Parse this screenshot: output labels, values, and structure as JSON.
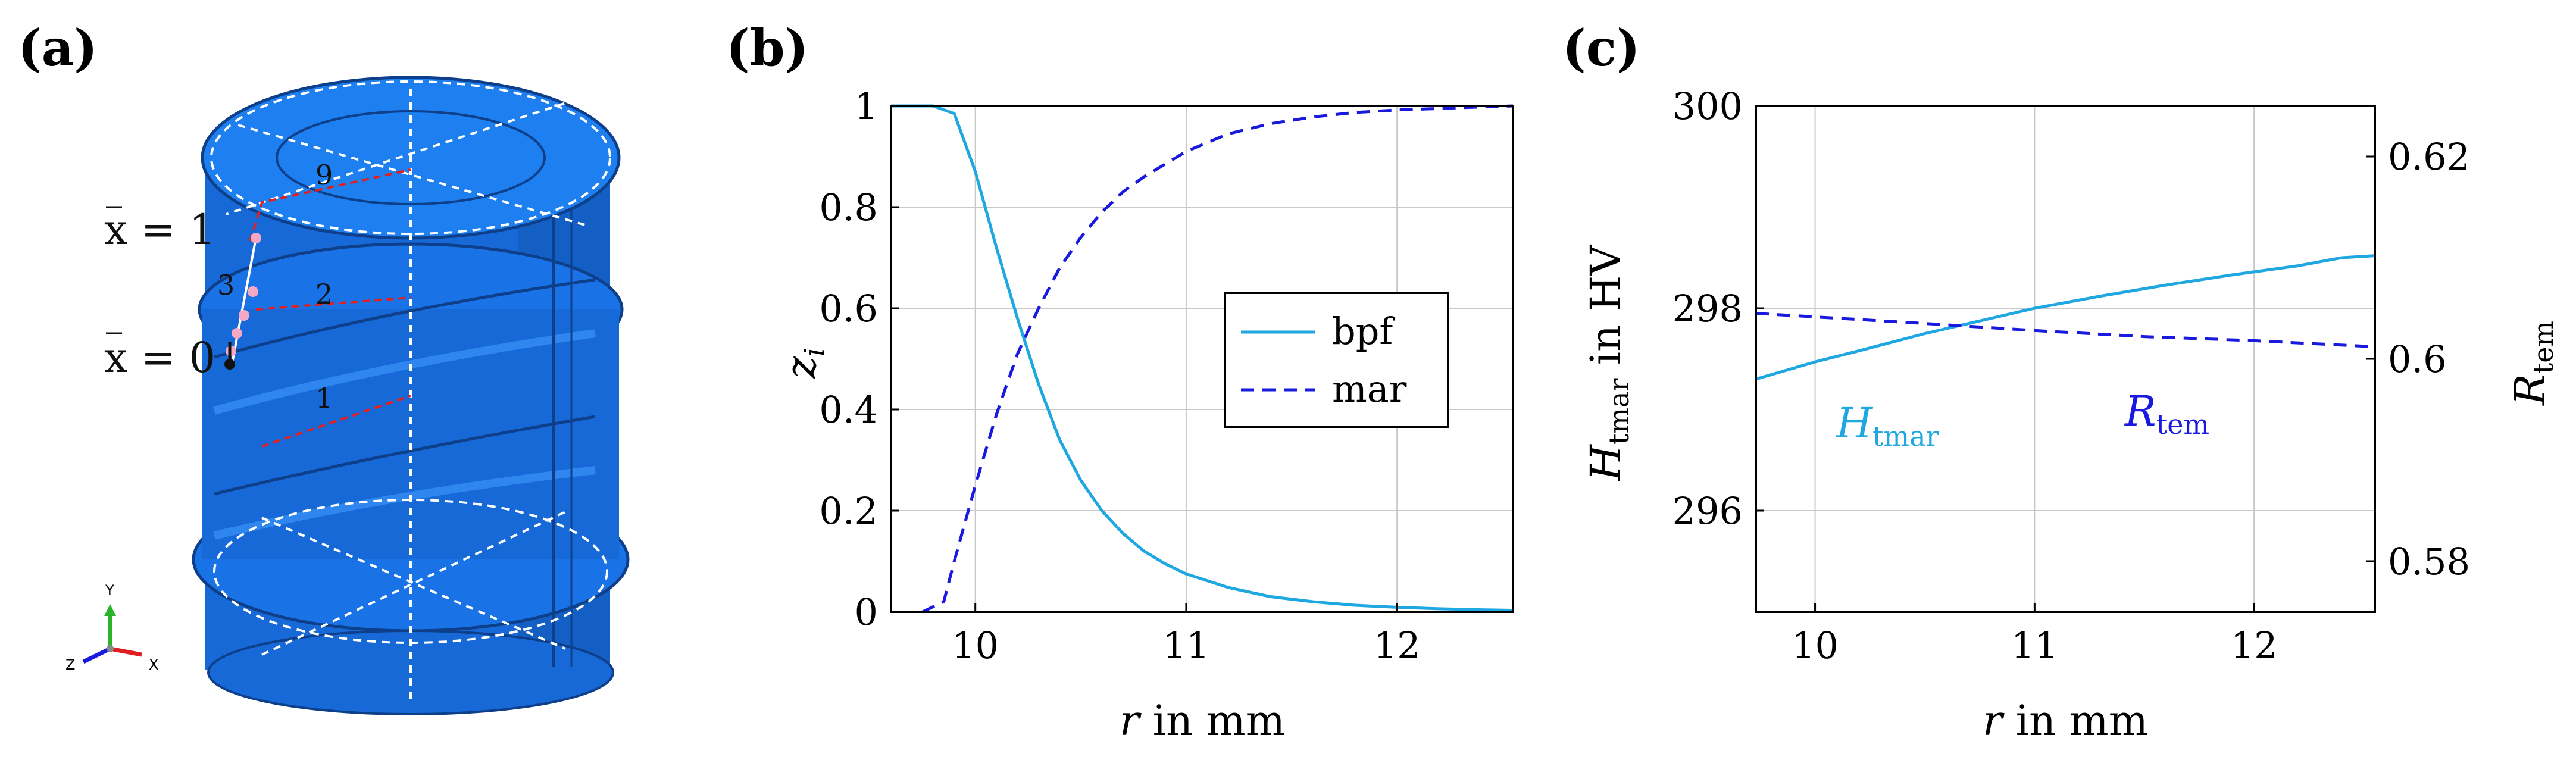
{
  "panels": {
    "a": {
      "label": "(a)",
      "xbar_top": "x = 1",
      "xbar_bottom": "x = 0",
      "point_labels": [
        "9",
        "3",
        "2",
        "1"
      ],
      "triad": {
        "y": "Y",
        "z": "Z",
        "x": "X"
      }
    },
    "b": {
      "label": "(b)"
    },
    "c": {
      "label": "(c)"
    }
  },
  "chart_data": [
    {
      "type": "line",
      "panel": "b",
      "xlabel_var": "r",
      "xlabel_rest": " in mm",
      "ylabel_var": "z",
      "ylabel_sub": "i",
      "xlim": [
        9.6,
        12.55
      ],
      "ylim": [
        0,
        1
      ],
      "xticks": [
        10,
        11,
        12
      ],
      "yticks": [
        0,
        0.2,
        0.4,
        0.6,
        0.8,
        1
      ],
      "ytick_labels": [
        "0",
        "0.2",
        "0.4",
        "0.6",
        "0.8",
        "1"
      ],
      "grid": true,
      "legend_position": "middle-right",
      "series": [
        {
          "name": "bpf",
          "style": "solid",
          "color": "#1ea7e0",
          "x": [
            9.6,
            9.8,
            9.9,
            10.0,
            10.1,
            10.2,
            10.3,
            10.4,
            10.5,
            10.6,
            10.7,
            10.8,
            10.9,
            11.0,
            11.2,
            11.4,
            11.6,
            11.8,
            12.0,
            12.2,
            12.4,
            12.55
          ],
          "y": [
            1.0,
            1.0,
            0.985,
            0.87,
            0.72,
            0.58,
            0.45,
            0.34,
            0.26,
            0.2,
            0.155,
            0.12,
            0.095,
            0.075,
            0.048,
            0.03,
            0.02,
            0.013,
            0.009,
            0.006,
            0.004,
            0.003
          ]
        },
        {
          "name": "mar",
          "style": "dashed",
          "color": "#1a1adf",
          "x": [
            9.75,
            9.85,
            9.9,
            10.0,
            10.1,
            10.2,
            10.3,
            10.4,
            10.5,
            10.6,
            10.7,
            10.8,
            10.9,
            11.0,
            11.2,
            11.4,
            11.6,
            11.8,
            12.0,
            12.2,
            12.4,
            12.55
          ],
          "y": [
            0.0,
            0.02,
            0.1,
            0.25,
            0.39,
            0.51,
            0.6,
            0.68,
            0.74,
            0.79,
            0.83,
            0.86,
            0.885,
            0.91,
            0.945,
            0.965,
            0.978,
            0.987,
            0.992,
            0.995,
            0.998,
            1.0
          ]
        }
      ]
    },
    {
      "type": "line",
      "panel": "c",
      "xlabel_var": "r",
      "xlabel_rest": " in mm",
      "ylabel_left_var": "H",
      "ylabel_left_sub": "tmar",
      "ylabel_left_rest": " in HV",
      "ylabel_right_var": "R",
      "ylabel_right_sub": "tem",
      "xlim": [
        9.73,
        12.55
      ],
      "ylim_left": [
        295,
        300
      ],
      "ylim_right": [
        0.575,
        0.625
      ],
      "xticks": [
        10,
        11,
        12
      ],
      "yticks_left": [
        296,
        298,
        300
      ],
      "yticks_right": [
        0.58,
        0.6,
        0.62
      ],
      "ytick_labels_right": [
        "0.58",
        "0.6",
        "0.62"
      ],
      "grid": true,
      "annotations": [
        {
          "var": "H",
          "sub": "tmar",
          "color": "#1ea7e0"
        },
        {
          "var": "R",
          "sub": "tem",
          "color": "#1a1adf"
        }
      ],
      "series": [
        {
          "name": "H_tmar",
          "axis": "left",
          "style": "solid",
          "color": "#1ea7e0",
          "x": [
            9.73,
            10.0,
            10.2,
            10.5,
            10.8,
            11.0,
            11.3,
            11.6,
            11.9,
            12.2,
            12.4,
            12.55
          ],
          "y": [
            297.3,
            297.47,
            297.58,
            297.75,
            297.9,
            298.0,
            298.12,
            298.23,
            298.33,
            298.42,
            298.5,
            298.52
          ]
        },
        {
          "name": "R_tem",
          "axis": "right",
          "style": "dashed",
          "color": "#1a1adf",
          "x": [
            9.73,
            10.5,
            11.0,
            11.5,
            12.0,
            12.55
          ],
          "y": [
            0.6045,
            0.6035,
            0.6028,
            0.6022,
            0.6018,
            0.6012
          ]
        }
      ]
    }
  ]
}
